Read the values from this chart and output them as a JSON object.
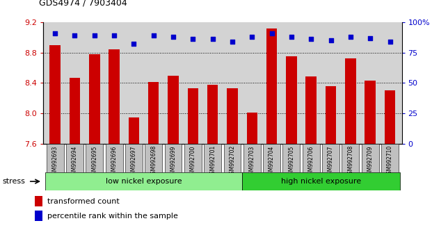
{
  "title": "GDS4974 / 7903404",
  "categories": [
    "GSM992693",
    "GSM992694",
    "GSM992695",
    "GSM992696",
    "GSM992697",
    "GSM992698",
    "GSM992699",
    "GSM992700",
    "GSM992701",
    "GSM992702",
    "GSM992703",
    "GSM992704",
    "GSM992705",
    "GSM992706",
    "GSM992707",
    "GSM992708",
    "GSM992709",
    "GSM992710"
  ],
  "bar_values": [
    8.9,
    8.47,
    8.78,
    8.84,
    7.95,
    8.41,
    8.5,
    8.33,
    8.38,
    8.33,
    8.01,
    9.12,
    8.75,
    8.49,
    8.36,
    8.72,
    8.43,
    8.3
  ],
  "dot_values": [
    91,
    89,
    89,
    89,
    82,
    89,
    88,
    86,
    86,
    84,
    88,
    91,
    88,
    86,
    85,
    88,
    87,
    84
  ],
  "bar_color": "#cc0000",
  "dot_color": "#0000cc",
  "ylim_left": [
    7.6,
    9.2
  ],
  "ylim_right": [
    0,
    100
  ],
  "yticks_left": [
    7.6,
    8.0,
    8.4,
    8.8,
    9.2
  ],
  "yticks_right": [
    0,
    25,
    50,
    75,
    100
  ],
  "ylabel_left_color": "#cc0000",
  "ylabel_right_color": "#0000cc",
  "low_nickel_label": "low nickel exposure",
  "high_nickel_label": "high nickel exposure",
  "low_nickel_count": 10,
  "high_nickel_count": 8,
  "stress_label": "stress",
  "legend_bar_label": "transformed count",
  "legend_dot_label": "percentile rank within the sample",
  "low_bg_color": "#90ee90",
  "high_bg_color": "#32cd32",
  "tick_bg_color": "#c0c0c0",
  "plot_bg_color": "#d3d3d3",
  "white": "#ffffff"
}
